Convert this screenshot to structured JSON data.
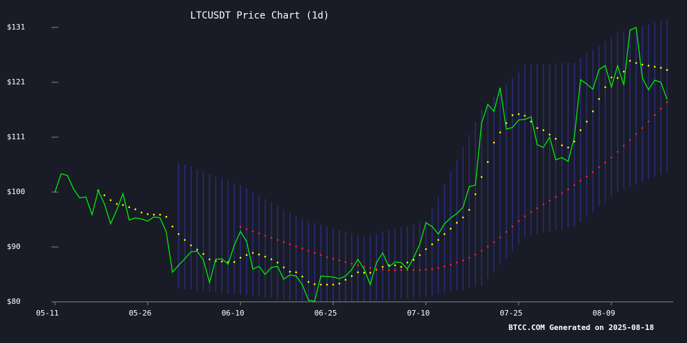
{
  "chart_data": {
    "type": "line",
    "title": "LTCUSDT Price Chart (1d)",
    "footer": "BTCC.COM Generated on 2025-08-18",
    "categories": [
      "05-11",
      "05-12",
      "05-13",
      "05-14",
      "05-15",
      "05-16",
      "05-17",
      "05-18",
      "05-19",
      "05-20",
      "05-21",
      "05-22",
      "05-23",
      "05-24",
      "05-25",
      "05-26",
      "05-27",
      "05-28",
      "05-29",
      "05-30",
      "05-31",
      "06-01",
      "06-02",
      "06-03",
      "06-04",
      "06-05",
      "06-06",
      "06-07",
      "06-08",
      "06-09",
      "06-10",
      "06-11",
      "06-12",
      "06-13",
      "06-14",
      "06-15",
      "06-16",
      "06-17",
      "06-18",
      "06-19",
      "06-20",
      "06-21",
      "06-22",
      "06-23",
      "06-24",
      "06-25",
      "06-26",
      "06-27",
      "06-28",
      "06-29",
      "06-30",
      "07-01",
      "07-02",
      "07-03",
      "07-04",
      "07-05",
      "07-06",
      "07-07",
      "07-08",
      "07-09",
      "07-10",
      "07-11",
      "07-12",
      "07-13",
      "07-14",
      "07-15",
      "07-16",
      "07-17",
      "07-18",
      "07-19",
      "07-20",
      "07-21",
      "07-22",
      "07-23",
      "07-24",
      "07-25",
      "07-26",
      "07-27",
      "07-28",
      "07-29",
      "07-30",
      "07-31",
      "08-01",
      "08-02",
      "08-03",
      "08-04",
      "08-05",
      "08-06",
      "08-07",
      "08-08",
      "08-09",
      "08-10",
      "08-11",
      "08-12",
      "08-13",
      "08-14",
      "08-15",
      "08-16",
      "08-17",
      "08-18"
    ],
    "xticks": [
      "05-11",
      "05-26",
      "06-10",
      "06-25",
      "07-10",
      "07-25",
      "08-09"
    ],
    "ylim": [
      80,
      131
    ],
    "yticks": [
      {
        "value": 80,
        "label": "$80"
      },
      {
        "value": 90.2,
        "label": "$90"
      },
      {
        "value": 100.4,
        "label": "$100"
      },
      {
        "value": 110.6,
        "label": "$111"
      },
      {
        "value": 120.8,
        "label": "$121"
      },
      {
        "value": 131,
        "label": "$131"
      }
    ],
    "series": [
      {
        "color": "#00ff00",
        "style": "line",
        "values": [
          100.4,
          103.8,
          103.5,
          101,
          99.3,
          99.5,
          96.2,
          100.7,
          98.2,
          94.5,
          97.1,
          100.1,
          95.2,
          95.6,
          95.4,
          95,
          95.8,
          95.6,
          93,
          85.5,
          86.8,
          88,
          89.3,
          89.4,
          87.8,
          83.6,
          87.9,
          88,
          87,
          90.5,
          93.1,
          91.2,
          86.1,
          86.6,
          85.1,
          86.4,
          86.6,
          84.2,
          85,
          84.8,
          83.2,
          80.3,
          80.1,
          84.8,
          84.7,
          84.6,
          84.3,
          84.8,
          86,
          87.9,
          86.1,
          83.2,
          87.3,
          89.1,
          86.5,
          87.4,
          87.3,
          86.1,
          88.2,
          90.7,
          94.7,
          94,
          92.6,
          94.5,
          95.6,
          96.4,
          97.6,
          101.4,
          101.7,
          113.2,
          116.7,
          115.4,
          119.8,
          112.1,
          112.4,
          113.8,
          113.9,
          114.4,
          109.2,
          108.7,
          110.6,
          106.4,
          106.8,
          106.1,
          110.6,
          121.3,
          120.5,
          119.5,
          123.2,
          123.9,
          119.9,
          123.9,
          120.3,
          130.5,
          131,
          121.6,
          119.4,
          121.2,
          120.8,
          117.6
        ]
      },
      {
        "color": "#ffff00",
        "style": "dots",
        "values": [
          null,
          null,
          null,
          null,
          null,
          null,
          null,
          100.7,
          99.8,
          98.9,
          98.2,
          98,
          97.6,
          97.2,
          96.6,
          96.3,
          96.2,
          96.2,
          95.8,
          94,
          92.6,
          91.5,
          90.5,
          89.7,
          88.9,
          87.9,
          87.6,
          87.5,
          87.4,
          87.4,
          88.2,
          88.7,
          89.1,
          88.8,
          88.4,
          87.9,
          87.3,
          86.4,
          85.6,
          85.5,
          84.7,
          83.7,
          83.3,
          83.2,
          83.2,
          83.2,
          83.4,
          84.1,
          84.8,
          85.5,
          85.4,
          85.4,
          86,
          86.5,
          86.8,
          86.8,
          86.5,
          87.3,
          87.8,
          88.7,
          89.8,
          90.7,
          91.5,
          92.6,
          93.6,
          94.7,
          95.7,
          97.1,
          100,
          103.2,
          106,
          109.6,
          111.5,
          113.2,
          114.7,
          114.9,
          114.6,
          113.5,
          112.3,
          111.9,
          111.1,
          110.3,
          109.1,
          108.7,
          109.8,
          111.9,
          113.5,
          115.4,
          117.7,
          119.9,
          121.7,
          121.6,
          122.8,
          124.8,
          124.4,
          124.1,
          123.9,
          123.7,
          123.5,
          123.1
        ]
      },
      {
        "color": "#ff2020",
        "style": "dots",
        "values": [
          null,
          null,
          null,
          null,
          null,
          null,
          null,
          null,
          null,
          null,
          null,
          null,
          null,
          null,
          null,
          null,
          null,
          null,
          null,
          null,
          null,
          null,
          null,
          null,
          null,
          null,
          null,
          null,
          null,
          null,
          93.9,
          93.5,
          93.1,
          92.7,
          92.3,
          91.9,
          91.5,
          91.1,
          90.7,
          90.3,
          89.9,
          89.5,
          89.1,
          88.7,
          88.3,
          88,
          87.7,
          87.4,
          87.1,
          86.8,
          86.5,
          86.3,
          86.1,
          86,
          85.9,
          85.9,
          85.9,
          85.9,
          85.9,
          85.9,
          86,
          86.1,
          86.3,
          86.6,
          86.9,
          87.3,
          87.7,
          88.2,
          88.8,
          89.5,
          90.3,
          91.1,
          92,
          93,
          94,
          95,
          95.9,
          96.7,
          97.4,
          98.1,
          98.8,
          99.5,
          100.2,
          100.9,
          101.7,
          102.5,
          103.3,
          104.1,
          105,
          105.9,
          106.8,
          107.9,
          109,
          110.1,
          111.2,
          112.3,
          113.5,
          114.7,
          115.9,
          117.1
        ]
      }
    ],
    "band": {
      "color": "#2b2f86",
      "upper": [
        null,
        null,
        null,
        null,
        null,
        null,
        null,
        null,
        null,
        null,
        null,
        null,
        null,
        null,
        null,
        null,
        null,
        null,
        null,
        null,
        105.9,
        105.5,
        105.1,
        104.6,
        104.2,
        103.8,
        103.4,
        103,
        102.5,
        102.1,
        101.7,
        101.1,
        100.4,
        99.8,
        99.1,
        98.5,
        97.9,
        97.2,
        96.6,
        95.9,
        95.3,
        95,
        94.7,
        94.3,
        94,
        93.7,
        93.4,
        93.1,
        92.7,
        92.4,
        92.1,
        92.4,
        92.7,
        93,
        93.3,
        93.6,
        93.8,
        94.1,
        94.4,
        94.7,
        95,
        97.3,
        99.6,
        101.9,
        104.2,
        106.5,
        108.8,
        111.1,
        113.4,
        115.7,
        116.9,
        118.1,
        119.3,
        120.4,
        121.6,
        122.8,
        124,
        124.1,
        124.1,
        124.2,
        124.2,
        124.3,
        124.4,
        124.4,
        124.5,
        125.3,
        126.1,
        126.9,
        127.6,
        128.4,
        129.2,
        130,
        130.3,
        130.6,
        130.9,
        131.3,
        131.6,
        131.9,
        132.2,
        132.5
      ],
      "lower": [
        null,
        null,
        null,
        null,
        null,
        null,
        null,
        null,
        null,
        null,
        null,
        null,
        null,
        null,
        null,
        null,
        null,
        null,
        null,
        null,
        82.5,
        82.4,
        82.3,
        82.1,
        82,
        81.9,
        81.8,
        81.7,
        81.5,
        81.4,
        81.3,
        81.2,
        81,
        80.9,
        80.8,
        80.7,
        80.5,
        80.4,
        80.3,
        80.1,
        80,
        80,
        80,
        80,
        80,
        80,
        80,
        80,
        80,
        80,
        80,
        80.1,
        80.2,
        80.3,
        80.4,
        80.5,
        80.6,
        80.7,
        80.8,
        80.9,
        81,
        81.2,
        81.4,
        81.7,
        81.9,
        82.1,
        82.3,
        82.6,
        82.8,
        83,
        84.3,
        85.6,
        86.9,
        88.1,
        89.4,
        90.7,
        92,
        92.3,
        92.5,
        92.8,
        93,
        93.3,
        93.5,
        93.8,
        94,
        94.9,
        95.8,
        96.7,
        97.7,
        98.6,
        99.5,
        100.4,
        100.9,
        101.4,
        101.8,
        102.3,
        102.8,
        103.3,
        103.7,
        104.2
      ]
    }
  }
}
